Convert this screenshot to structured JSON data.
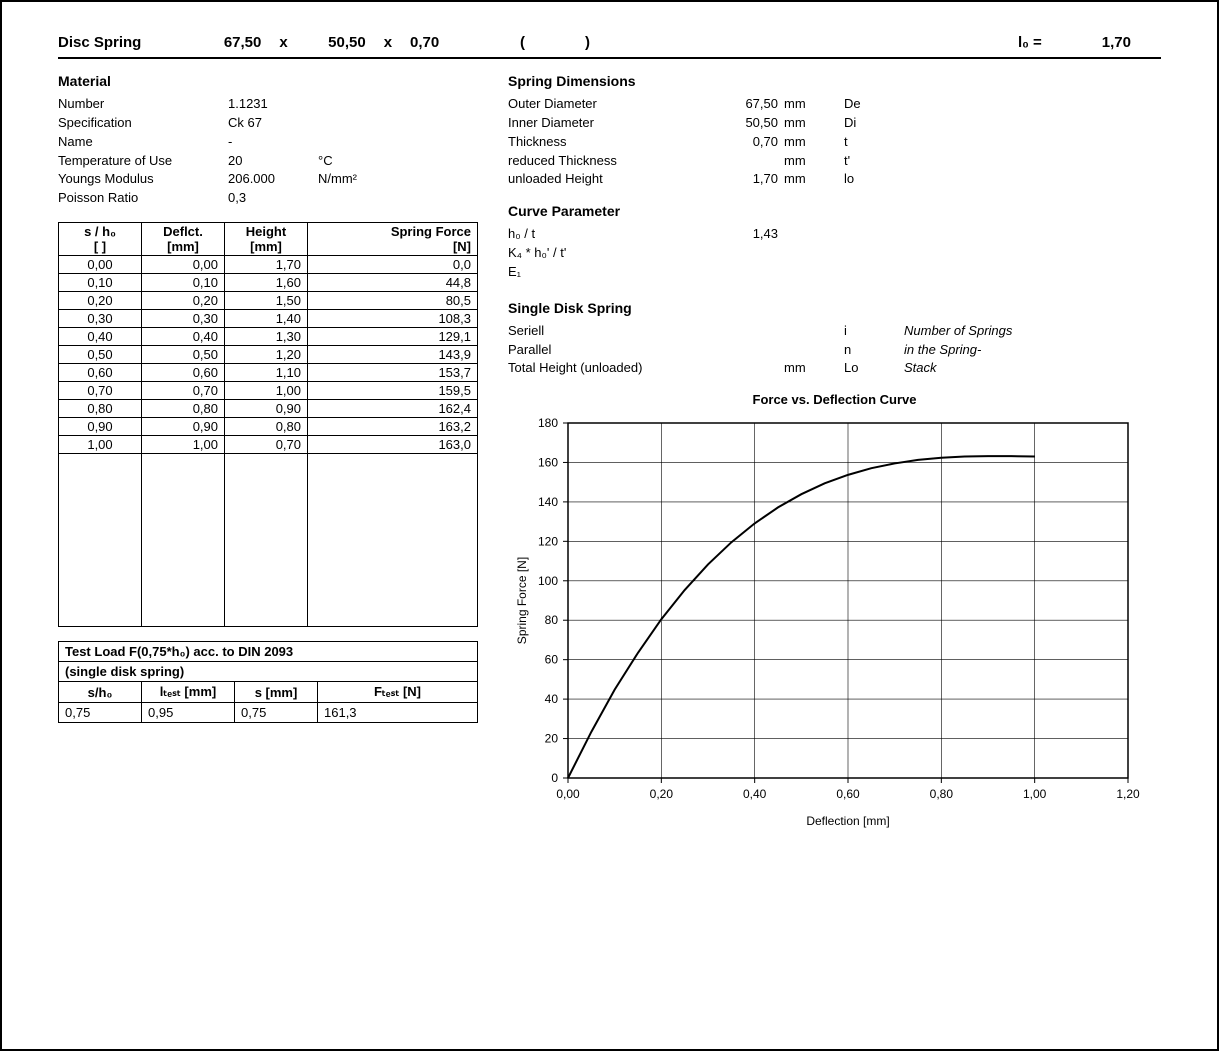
{
  "title": {
    "label": "Disc Spring",
    "De": "67,50",
    "Di": "50,50",
    "t": "0,70",
    "sep": "x",
    "paren_open": "(",
    "paren_close": ")",
    "l0_label": "l₀ =",
    "l0": "1,70"
  },
  "material": {
    "heading": "Material",
    "rows": [
      {
        "k": "Number",
        "v": "1.1231",
        "u": ""
      },
      {
        "k": "Specification",
        "v": "Ck 67",
        "u": ""
      },
      {
        "k": "Name",
        "v": "-",
        "u": ""
      },
      {
        "k": "Temperature of Use",
        "v": "20",
        "u": "°C"
      },
      {
        "k": "Youngs Modulus",
        "v": "206.000",
        "u": "N/mm²"
      },
      {
        "k": "Poisson Ratio",
        "v": "0,3",
        "u": ""
      }
    ]
  },
  "dimensions": {
    "heading": "Spring Dimensions",
    "rows": [
      {
        "k": "Outer Diameter",
        "v": "67,50",
        "u": "mm",
        "sym": "De"
      },
      {
        "k": "Inner Diameter",
        "v": "50,50",
        "u": "mm",
        "sym": "Di"
      },
      {
        "k": "Thickness",
        "v": "0,70",
        "u": "mm",
        "sym": "t"
      },
      {
        "k": "reduced Thickness",
        "v": "",
        "u": "mm",
        "sym": "t'"
      },
      {
        "k": "unloaded Height",
        "v": "1,70",
        "u": "mm",
        "sym": "lo"
      }
    ]
  },
  "curve_param": {
    "heading": "Curve Parameter",
    "rows": [
      {
        "k": "h₀ / t",
        "v": "1,43"
      },
      {
        "k": "K₄ * h₀' / t'",
        "v": ""
      },
      {
        "k": "E₁",
        "v": ""
      }
    ]
  },
  "single_disk": {
    "heading": "Single Disk Spring",
    "rows": [
      {
        "k": "Seriell",
        "v": "",
        "u": "",
        "sym": "i",
        "note": "Number of Springs"
      },
      {
        "k": "Parallel",
        "v": "",
        "u": "",
        "sym": "n",
        "note": "in the Spring-"
      },
      {
        "k": "Total Height (unloaded)",
        "v": "",
        "u": "mm",
        "sym": "Lo",
        "note": "Stack"
      }
    ]
  },
  "table": {
    "head": {
      "c1a": "s / h₀",
      "c1b": "[ ]",
      "c2a": "Deflct.",
      "c2b": "[mm]",
      "c3a": "Height",
      "c3b": "[mm]",
      "c4a": "Spring Force",
      "c4b": "[N]"
    },
    "rows": [
      [
        "0,00",
        "0,00",
        "1,70",
        "0,0"
      ],
      [
        "0,10",
        "0,10",
        "1,60",
        "44,8"
      ],
      [
        "0,20",
        "0,20",
        "1,50",
        "80,5"
      ],
      [
        "0,30",
        "0,30",
        "1,40",
        "108,3"
      ],
      [
        "0,40",
        "0,40",
        "1,30",
        "129,1"
      ],
      [
        "0,50",
        "0,50",
        "1,20",
        "143,9"
      ],
      [
        "0,60",
        "0,60",
        "1,10",
        "153,7"
      ],
      [
        "0,70",
        "0,70",
        "1,00",
        "159,5"
      ],
      [
        "0,80",
        "0,80",
        "0,90",
        "162,4"
      ],
      [
        "0,90",
        "0,90",
        "0,80",
        "163,2"
      ],
      [
        "1,00",
        "1,00",
        "0,70",
        "163,0"
      ]
    ],
    "filler_cols": 4
  },
  "test": {
    "title1": "Test Load F(0,75*h₀) acc. to DIN 2093",
    "title2": "(single disk spring)",
    "head": {
      "c1": "s/h₀",
      "c2": "lₜₑₛₜ [mm]",
      "c3": "s [mm]",
      "c4": "Fₜₑₛₜ [N]"
    },
    "row": [
      "0,75",
      "0,95",
      "0,75",
      "161,3"
    ]
  },
  "chart": {
    "title": "Force vs. Deflection Curve",
    "xlabel": "Deflection [mm]",
    "ylabel": "Spring Force [N]",
    "x_ticks": [
      "0,00",
      "0,20",
      "0,40",
      "0,60",
      "0,80",
      "1,00",
      "1,20"
    ],
    "x_vals": [
      0.0,
      0.2,
      0.4,
      0.6,
      0.8,
      1.0,
      1.2
    ],
    "y_ticks": [
      "0",
      "20",
      "40",
      "60",
      "80",
      "100",
      "120",
      "140",
      "160",
      "180"
    ],
    "y_vals": [
      0,
      20,
      40,
      60,
      80,
      100,
      120,
      140,
      160,
      180
    ],
    "xlim": [
      0.0,
      1.2
    ],
    "ylim": [
      0,
      180
    ],
    "points": [
      [
        0.0,
        0.0
      ],
      [
        0.05,
        23.4
      ],
      [
        0.1,
        44.8
      ],
      [
        0.15,
        63.5
      ],
      [
        0.2,
        80.5
      ],
      [
        0.25,
        95.3
      ],
      [
        0.3,
        108.3
      ],
      [
        0.35,
        119.5
      ],
      [
        0.4,
        129.1
      ],
      [
        0.45,
        137.2
      ],
      [
        0.5,
        143.9
      ],
      [
        0.55,
        149.4
      ],
      [
        0.6,
        153.7
      ],
      [
        0.65,
        157.1
      ],
      [
        0.7,
        159.5
      ],
      [
        0.75,
        161.3
      ],
      [
        0.8,
        162.4
      ],
      [
        0.85,
        163.0
      ],
      [
        0.9,
        163.2
      ],
      [
        0.95,
        163.2
      ],
      [
        1.0,
        163.0
      ]
    ],
    "line_color": "#000000",
    "line_width": 2,
    "grid_color": "#000000",
    "bg": "#ffffff",
    "font_size": 12
  }
}
